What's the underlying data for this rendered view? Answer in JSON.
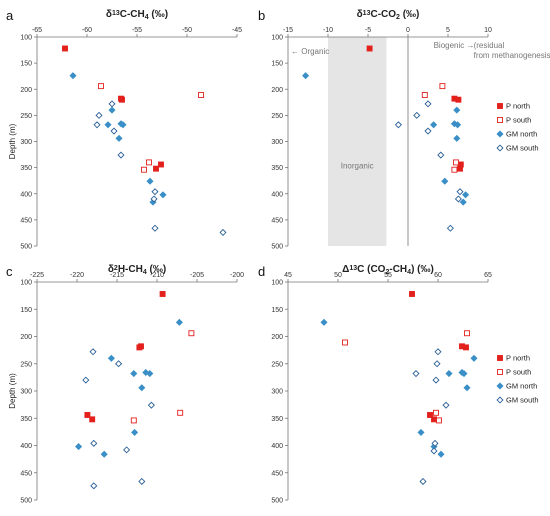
{
  "colors": {
    "p_north": "#e3211c",
    "p_south": "#e3211c",
    "gm_north": "#3a8fc7",
    "gm_south": "#2a5f97",
    "shade": "#e5e5e5"
  },
  "legend": [
    "P north",
    "P south",
    "GM north",
    "GM south"
  ],
  "chart_data": [
    {
      "type": "scatter",
      "letter": "a",
      "title_parts": [
        "δ",
        "13",
        "C-CH",
        "4",
        " (‰)"
      ],
      "ylabel": "Depth (m)",
      "xlim": [
        -65,
        -45
      ],
      "x_ticks": [
        -65,
        -60,
        -55,
        -50,
        -45
      ],
      "ylim": [
        100,
        500
      ],
      "y_ticks": [
        100,
        150,
        200,
        250,
        300,
        350,
        400,
        450,
        500
      ],
      "series": [
        {
          "name": "P north",
          "points": [
            [
              -62.2,
              122
            ],
            [
              -56.6,
              218
            ],
            [
              -56.5,
              220
            ],
            [
              -52.6,
              344
            ],
            [
              -53.1,
              352
            ]
          ]
        },
        {
          "name": "P south",
          "points": [
            [
              -58.6,
              194
            ],
            [
              -48.6,
              211
            ],
            [
              -53.8,
              340
            ],
            [
              -54.3,
              354
            ]
          ]
        },
        {
          "name": "GM north",
          "points": [
            [
              -61.4,
              174
            ],
            [
              -57.5,
              240
            ],
            [
              -57.9,
              268
            ],
            [
              -56.6,
              266
            ],
            [
              -56.4,
              268
            ],
            [
              -56.8,
              294
            ],
            [
              -53.7,
              376
            ],
            [
              -52.4,
              402
            ],
            [
              -53.4,
              416
            ]
          ]
        },
        {
          "name": "GM south",
          "points": [
            [
              -57.5,
              228
            ],
            [
              -58.8,
              250
            ],
            [
              -59.0,
              268
            ],
            [
              -57.3,
              280
            ],
            [
              -56.6,
              326
            ],
            [
              -53.2,
              396
            ],
            [
              -53.3,
              410
            ],
            [
              -53.2,
              466
            ],
            [
              -46.4,
              474
            ]
          ]
        }
      ]
    },
    {
      "type": "scatter",
      "letter": "b",
      "title_parts": [
        "δ",
        "13",
        "C-CO",
        "2",
        " (‰)"
      ],
      "ylabel": "",
      "xlim": [
        -15,
        10
      ],
      "x_ticks": [
        -15,
        -10,
        -5,
        0,
        5,
        10
      ],
      "ylim": [
        100,
        500
      ],
      "y_ticks": [
        100,
        150,
        200,
        250,
        300,
        350,
        400,
        450,
        500
      ],
      "shade": [
        -10,
        -2.7
      ],
      "annotations": {
        "organic": "← Organic",
        "biogenic": "Biogenic →",
        "residual": "(residual",
        "from_methanogenesis": "from methanogenesis)",
        "inorganic": "Inorganic"
      },
      "series": [
        {
          "name": "P north",
          "points": [
            [
              -4.8,
              122
            ],
            [
              5.8,
              218
            ],
            [
              6.3,
              220
            ],
            [
              6.6,
              344
            ],
            [
              6.5,
              352
            ]
          ]
        },
        {
          "name": "P south",
          "points": [
            [
              4.3,
              194
            ],
            [
              2.1,
              211
            ],
            [
              6.0,
              340
            ],
            [
              5.8,
              354
            ]
          ]
        },
        {
          "name": "GM north",
          "points": [
            [
              -12.8,
              174
            ],
            [
              6.1,
              240
            ],
            [
              3.2,
              268
            ],
            [
              5.8,
              266
            ],
            [
              6.2,
              268
            ],
            [
              6.1,
              294
            ],
            [
              4.6,
              376
            ],
            [
              7.2,
              402
            ],
            [
              6.9,
              416
            ]
          ]
        },
        {
          "name": "GM south",
          "points": [
            [
              2.5,
              228
            ],
            [
              1.1,
              250
            ],
            [
              -1.2,
              268
            ],
            [
              2.5,
              280
            ],
            [
              4.1,
              326
            ],
            [
              6.5,
              396
            ],
            [
              6.3,
              410
            ],
            [
              5.3,
              466
            ]
          ]
        }
      ]
    },
    {
      "type": "scatter",
      "letter": "c",
      "title_parts": [
        "δ",
        "2",
        "H-CH",
        "4",
        " (‰)"
      ],
      "ylabel": "Depth (m)",
      "xlim": [
        -225,
        -200
      ],
      "x_ticks": [
        -225,
        -220,
        -215,
        -210,
        -205,
        -200
      ],
      "ylim": [
        100,
        500
      ],
      "y_ticks": [
        100,
        150,
        200,
        250,
        300,
        350,
        400,
        450,
        500
      ],
      "series": [
        {
          "name": "P north",
          "points": [
            [
              -209.3,
              122
            ],
            [
              -212.0,
              218
            ],
            [
              -212.2,
              220
            ],
            [
              -218.7,
              344
            ],
            [
              -218.1,
              352
            ]
          ]
        },
        {
          "name": "P south",
          "points": [
            [
              -205.7,
              194
            ],
            [
              -207.1,
              340
            ],
            [
              -212.9,
              354
            ]
          ]
        },
        {
          "name": "GM north",
          "points": [
            [
              -207.2,
              174
            ],
            [
              -215.7,
              240
            ],
            [
              -212.9,
              268
            ],
            [
              -211.4,
              266
            ],
            [
              -210.9,
              268
            ],
            [
              -211.9,
              294
            ],
            [
              -212.8,
              376
            ],
            [
              -219.8,
              402
            ],
            [
              -216.6,
              416
            ]
          ]
        },
        {
          "name": "GM south",
          "points": [
            [
              -218.0,
              228
            ],
            [
              -214.8,
              250
            ],
            [
              -218.9,
              280
            ],
            [
              -210.7,
              326
            ],
            [
              -217.9,
              396
            ],
            [
              -213.8,
              408
            ],
            [
              -211.9,
              466
            ],
            [
              -217.9,
              474
            ]
          ]
        }
      ]
    },
    {
      "type": "scatter",
      "letter": "d",
      "title_parts": [
        "Δ",
        "13",
        "C (CO",
        "2",
        "-CH",
        "4",
        ") (‰)"
      ],
      "ylabel": "",
      "xlim": [
        45,
        65
      ],
      "x_ticks": [
        45,
        50,
        55,
        60,
        65
      ],
      "ylim": [
        100,
        500
      ],
      "y_ticks": [
        100,
        150,
        200,
        250,
        300,
        350,
        400,
        450,
        500
      ],
      "series": [
        {
          "name": "P north",
          "points": [
            [
              57.4,
              122
            ],
            [
              62.4,
              218
            ],
            [
              62.8,
              220
            ],
            [
              59.2,
              344
            ],
            [
              59.6,
              352
            ]
          ]
        },
        {
          "name": "P south",
          "points": [
            [
              62.9,
              194
            ],
            [
              50.7,
              211
            ],
            [
              59.8,
              340
            ],
            [
              60.1,
              354
            ]
          ]
        },
        {
          "name": "GM north",
          "points": [
            [
              48.6,
              174
            ],
            [
              63.6,
              240
            ],
            [
              61.1,
              268
            ],
            [
              62.4,
              266
            ],
            [
              62.6,
              268
            ],
            [
              62.9,
              294
            ],
            [
              58.3,
              376
            ],
            [
              59.6,
              402
            ],
            [
              60.3,
              416
            ]
          ]
        },
        {
          "name": "GM south",
          "points": [
            [
              60.0,
              228
            ],
            [
              59.9,
              250
            ],
            [
              57.8,
              268
            ],
            [
              59.8,
              280
            ],
            [
              60.8,
              326
            ],
            [
              59.7,
              396
            ],
            [
              59.6,
              410
            ],
            [
              58.5,
              466
            ]
          ]
        }
      ]
    }
  ]
}
